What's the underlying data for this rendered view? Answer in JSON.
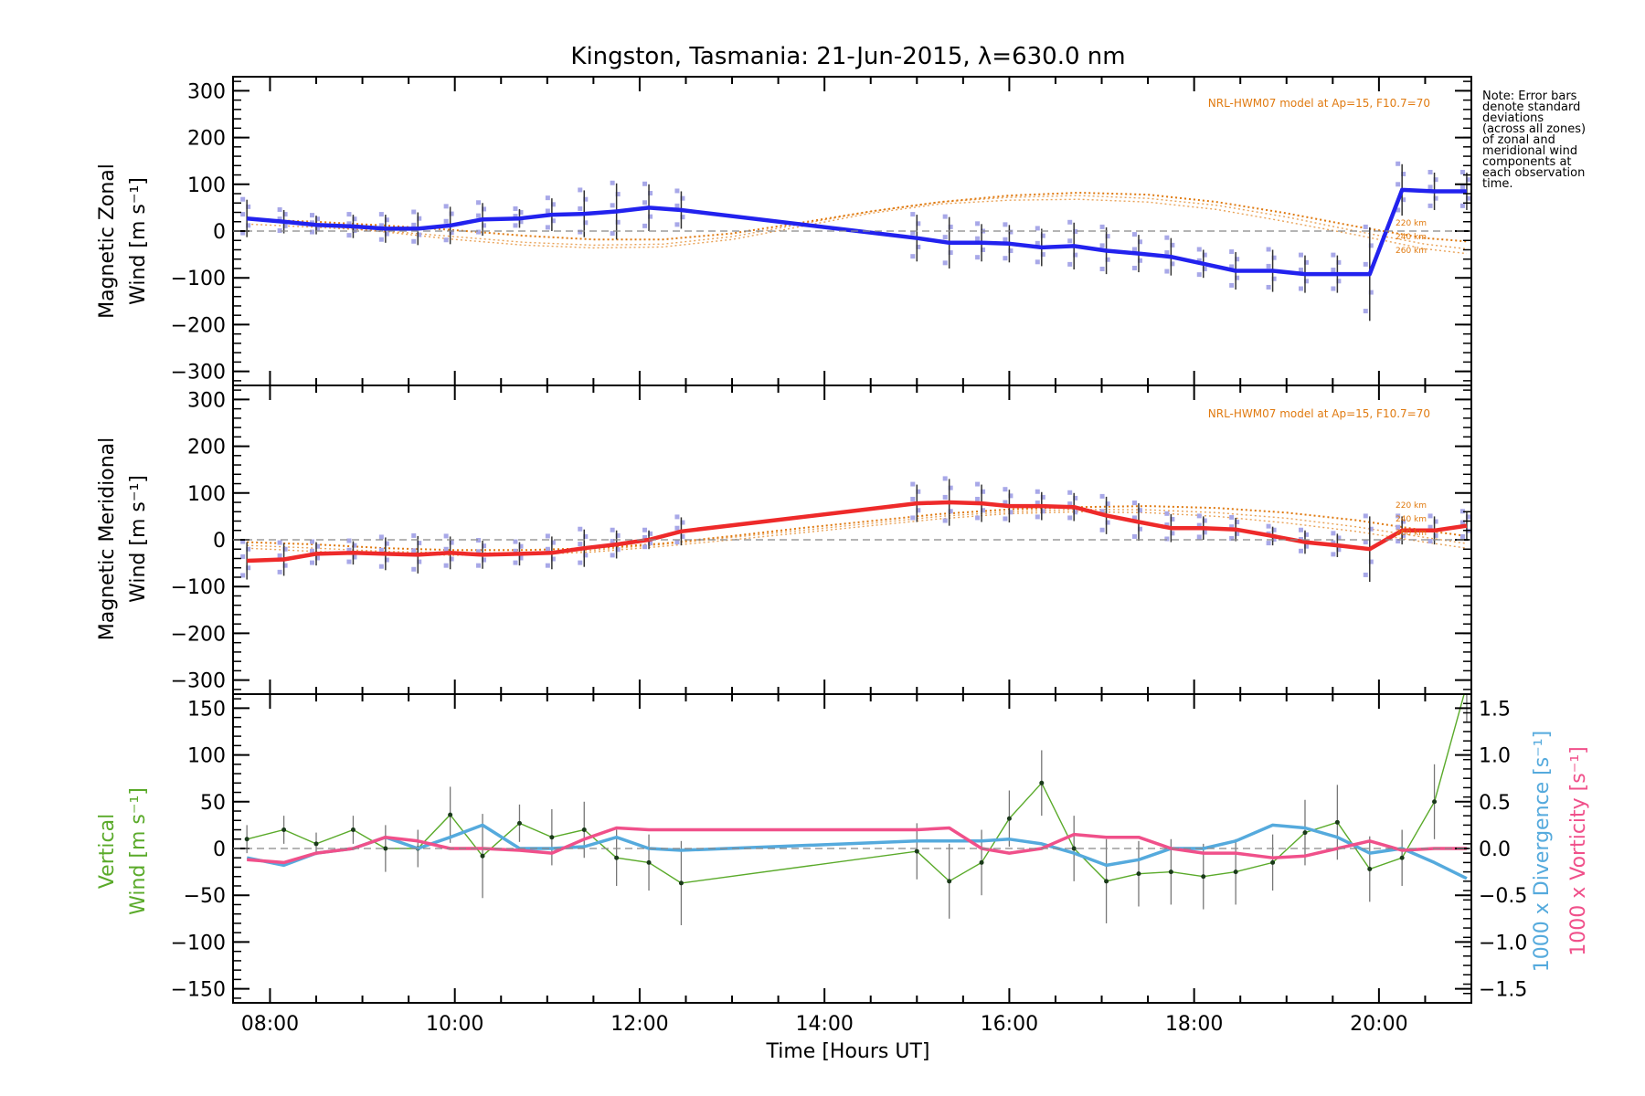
{
  "title": "Kingston, Tasmania: 21-Jun-2015, λ=630.0 nm",
  "note_lines": [
    "Note: Error bars",
    "denote standard",
    "deviations",
    "(across all zones)",
    "of zonal and",
    "meridional wind",
    "components at",
    "each observation",
    "time."
  ],
  "colors": {
    "zonal": "#2222ee",
    "meridional": "#ee2a2a",
    "vertical": "#5aaa2a",
    "divergence": "#55aadd",
    "vorticity": "#f0508a",
    "model": "#e07a10",
    "scatter": "#a8a8e8"
  },
  "chart_data": [
    {
      "type": "line",
      "panel": "zonal",
      "ylabel_line1": "Magnetic Zonal",
      "ylabel_line2": "Wind [m s⁻¹]",
      "ylim": [
        -330,
        330
      ],
      "yticks": [
        "300",
        "200",
        "100",
        "0",
        "−100",
        "−200",
        "−300"
      ],
      "model_label": "NRL-HWM07 model at Ap=15, F10.7=70",
      "altitude_labels": [
        "220 km",
        "240 km",
        "260 km"
      ],
      "x": [
        7.75,
        8.15,
        8.5,
        8.9,
        9.25,
        9.6,
        9.95,
        10.3,
        10.7,
        11.05,
        11.4,
        11.75,
        12.1,
        12.45,
        15.0,
        15.35,
        15.7,
        16.0,
        16.35,
        16.7,
        17.05,
        17.4,
        17.75,
        18.1,
        18.45,
        18.85,
        19.2,
        19.55,
        19.9,
        20.25,
        20.6,
        20.95
      ],
      "values": [
        27,
        20,
        13,
        10,
        5,
        5,
        12,
        25,
        27,
        35,
        37,
        42,
        50,
        45,
        -15,
        -25,
        -25,
        -27,
        -35,
        -32,
        -42,
        -48,
        -55,
        -70,
        -85,
        -85,
        -92,
        -92,
        -92,
        88,
        85,
        85
      ],
      "error": [
        40,
        25,
        20,
        25,
        30,
        35,
        40,
        35,
        20,
        35,
        50,
        60,
        50,
        40,
        50,
        55,
        40,
        40,
        40,
        50,
        50,
        40,
        40,
        30,
        40,
        45,
        40,
        40,
        100,
        55,
        40,
        40
      ],
      "model_x": [
        7.75,
        8.5,
        9.25,
        10.0,
        10.75,
        11.5,
        12.25,
        13.0,
        13.75,
        14.5,
        15.25,
        16.0,
        16.75,
        17.5,
        18.25,
        19.0,
        19.75,
        20.5,
        20.95
      ],
      "model_series": [
        {
          "values": [
            25,
            20,
            12,
            2,
            -10,
            -18,
            -18,
            -5,
            18,
            42,
            62,
            76,
            82,
            78,
            62,
            38,
            10,
            -15,
            -22
          ]
        },
        {
          "values": [
            15,
            8,
            0,
            -12,
            -24,
            -30,
            -28,
            -12,
            15,
            42,
            62,
            72,
            76,
            70,
            55,
            30,
            0,
            -28,
            -38
          ]
        },
        {
          "values": [
            30,
            12,
            -2,
            -18,
            -30,
            -36,
            -34,
            -18,
            10,
            38,
            58,
            66,
            68,
            62,
            46,
            20,
            -8,
            -38,
            -48
          ]
        }
      ]
    },
    {
      "type": "line",
      "panel": "meridional",
      "ylabel_line1": "Magnetic Meridional",
      "ylabel_line2": "Wind [m s⁻¹]",
      "ylim": [
        -330,
        330
      ],
      "yticks": [
        "300",
        "200",
        "100",
        "0",
        "−100",
        "−200",
        "−300"
      ],
      "model_label": "NRL-HWM07 model at Ap=15, F10.7=70",
      "altitude_labels": [
        "220 km",
        "240 km",
        "260 km"
      ],
      "x": [
        7.75,
        8.15,
        8.5,
        8.9,
        9.25,
        9.6,
        9.95,
        10.3,
        10.7,
        11.05,
        11.4,
        11.75,
        12.1,
        12.45,
        15.0,
        15.35,
        15.7,
        16.0,
        16.35,
        16.7,
        17.05,
        17.4,
        17.75,
        18.1,
        18.45,
        18.85,
        19.2,
        19.55,
        19.9,
        20.25,
        20.6,
        20.95
      ],
      "values": [
        -45,
        -42,
        -30,
        -28,
        -30,
        -32,
        -28,
        -32,
        -30,
        -28,
        -18,
        -10,
        0,
        18,
        78,
        80,
        78,
        72,
        72,
        70,
        52,
        38,
        25,
        25,
        22,
        8,
        -5,
        -12,
        -20,
        20,
        20,
        30
      ],
      "error": [
        40,
        35,
        25,
        25,
        35,
        40,
        35,
        30,
        25,
        35,
        40,
        30,
        20,
        30,
        40,
        50,
        40,
        35,
        30,
        30,
        40,
        40,
        30,
        25,
        25,
        20,
        25,
        25,
        70,
        30,
        30,
        30
      ],
      "model_x": [
        7.75,
        8.5,
        9.25,
        10.0,
        10.75,
        11.5,
        12.25,
        13.0,
        13.75,
        14.5,
        15.25,
        16.0,
        16.75,
        17.5,
        18.25,
        19.0,
        19.75,
        20.5,
        20.95
      ],
      "model_series": [
        {
          "values": [
            -5,
            -10,
            -18,
            -22,
            -22,
            -18,
            -8,
            8,
            25,
            40,
            55,
            65,
            70,
            72,
            68,
            58,
            42,
            20,
            8
          ]
        },
        {
          "values": [
            -12,
            -18,
            -25,
            -28,
            -28,
            -22,
            -10,
            5,
            20,
            35,
            50,
            60,
            65,
            64,
            58,
            46,
            28,
            5,
            -8
          ]
        },
        {
          "values": [
            -18,
            -25,
            -30,
            -33,
            -32,
            -26,
            -14,
            0,
            15,
            30,
            45,
            56,
            60,
            58,
            50,
            36,
            18,
            -5,
            -18
          ]
        }
      ]
    },
    {
      "type": "line",
      "panel": "vertical",
      "ylabel_line1": "Vertical",
      "ylabel_line2": "Wind [m s⁻¹]",
      "ylabel_right1": "1000 x Divergence [s⁻¹]",
      "ylabel_right2": "1000 x Vorticity [s⁻¹]",
      "ylim": [
        -165,
        165
      ],
      "yticks": [
        "150",
        "100",
        "50",
        "0",
        "−50",
        "−100",
        "−150"
      ],
      "ylim_right": [
        -1.65,
        1.65
      ],
      "yticks_right": [
        "1.5",
        "1.0",
        "0.5",
        "0.0",
        "−0.5",
        "−1.0",
        "−1.5"
      ],
      "vertical_x": [
        7.75,
        8.15,
        8.5,
        8.9,
        9.25,
        9.6,
        9.95,
        10.3,
        10.7,
        11.05,
        11.4,
        11.75,
        12.1,
        12.45,
        15.0,
        15.35,
        15.7,
        16.0,
        16.35,
        16.7,
        17.05,
        17.4,
        17.75,
        18.1,
        18.45,
        18.85,
        19.2,
        19.55,
        19.9,
        20.25,
        20.6,
        20.95
      ],
      "vertical_values": [
        10,
        20,
        5,
        20,
        0,
        0,
        36,
        -8,
        27,
        12,
        20,
        -10,
        -15,
        -37,
        -3,
        -35,
        -15,
        32,
        70,
        0,
        -35,
        -27,
        -25,
        -30,
        -25,
        -15,
        17,
        28,
        -22,
        -10,
        50,
        175
      ],
      "vertical_error": [
        15,
        15,
        12,
        15,
        25,
        20,
        30,
        45,
        20,
        30,
        30,
        30,
        30,
        45,
        30,
        40,
        35,
        30,
        35,
        35,
        45,
        35,
        35,
        35,
        35,
        30,
        35,
        40,
        35,
        30,
        40,
        40
      ],
      "divergence_values": [
        -0.1,
        -0.18,
        -0.05,
        0.0,
        0.12,
        0.0,
        0.12,
        0.25,
        0.0,
        0.0,
        0.02,
        0.12,
        0.0,
        -0.02,
        0.08,
        0.08,
        0.08,
        0.1,
        0.05,
        -0.05,
        -0.18,
        -0.12,
        0.0,
        0.0,
        0.08,
        0.25,
        0.22,
        0.12,
        -0.05,
        0.0,
        -0.15,
        -0.32
      ],
      "vorticity_values": [
        -0.12,
        -0.15,
        -0.05,
        0.0,
        0.12,
        0.08,
        0.0,
        0.0,
        -0.02,
        -0.05,
        0.1,
        0.22,
        0.2,
        0.2,
        0.2,
        0.22,
        0.0,
        -0.05,
        0.0,
        0.15,
        0.12,
        0.12,
        0.0,
        -0.05,
        -0.05,
        -0.1,
        -0.08,
        0.0,
        0.08,
        -0.02,
        0.0,
        0.0
      ]
    }
  ],
  "x_axis": {
    "label": "Time [Hours UT]",
    "xlim": [
      7.6,
      21.0
    ],
    "ticks": [
      8,
      10,
      12,
      14,
      16,
      18,
      20
    ],
    "tick_labels": [
      "08:00",
      "10:00",
      "12:00",
      "14:00",
      "16:00",
      "18:00",
      "20:00"
    ]
  }
}
